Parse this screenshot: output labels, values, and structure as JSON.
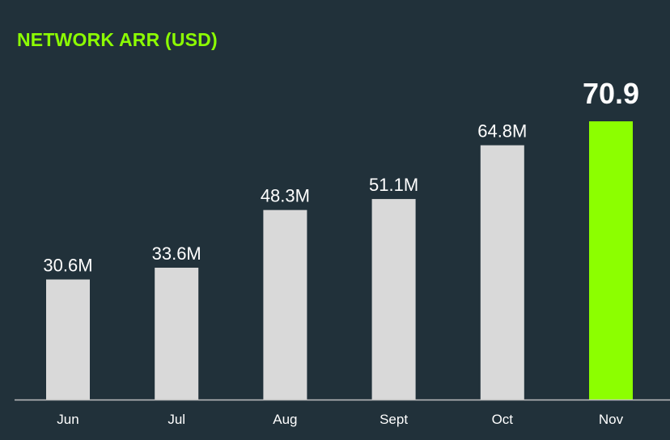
{
  "chart_data": {
    "type": "bar",
    "title": "NETWORK ARR (USD)",
    "categories": [
      "Jun",
      "Jul",
      "Aug",
      "Sept",
      "Oct",
      "Nov"
    ],
    "values": [
      30.6,
      33.6,
      48.3,
      51.1,
      64.8,
      70.9
    ],
    "data_labels": [
      "30.6M",
      "33.6M",
      "48.3M",
      "51.1M",
      "64.8M",
      "70.9"
    ],
    "highlight_index": 5,
    "xlabel": "",
    "ylabel": "",
    "ylim": [
      0,
      70.9
    ],
    "grid": false,
    "colors": {
      "bar": "#d9d9d9",
      "highlight": "#8cff00",
      "title": "#8cfc03",
      "background": "#21313a"
    }
  }
}
